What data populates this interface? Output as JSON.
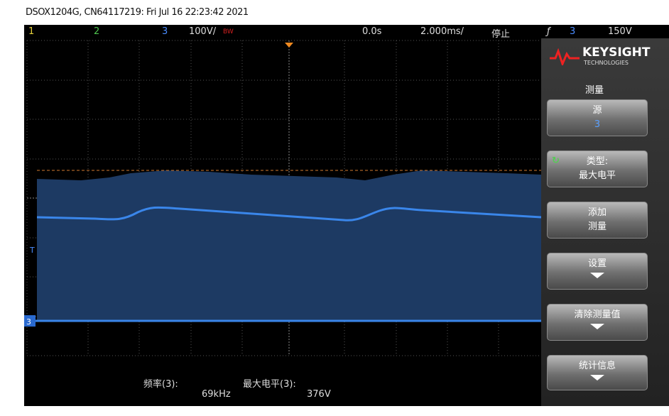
{
  "header": {
    "title": "DSOX1204G, CN64117219: Fri Jul 16 22:23:42 2021"
  },
  "status_bar": {
    "ch1": "1",
    "ch2": "2",
    "ch3": "3",
    "scale": "100V/",
    "bandwidth": "BW",
    "delay": "0.0s",
    "timebase": "2.000ms/",
    "run_state": "停止",
    "trigger_source": "3",
    "trigger_level": "150V"
  },
  "screen": {
    "trigger_marker": "T",
    "channel_marker": "3"
  },
  "softkeys": {
    "brand": "KEYSIGHT",
    "brand_sub": "TECHNOLOGIES",
    "menu_title": "测量",
    "keys": [
      {
        "label": "源",
        "value": "3"
      },
      {
        "label": "类型:",
        "value": "最大电平"
      },
      {
        "label": "添加",
        "value": "测量"
      },
      {
        "label": "设置"
      },
      {
        "label": "清除测量值"
      },
      {
        "label": "统计信息"
      }
    ]
  },
  "measurements": [
    {
      "label": "频率(3):",
      "value": "69kHz"
    },
    {
      "label": "最大电平(3):",
      "value": "376V"
    }
  ]
}
